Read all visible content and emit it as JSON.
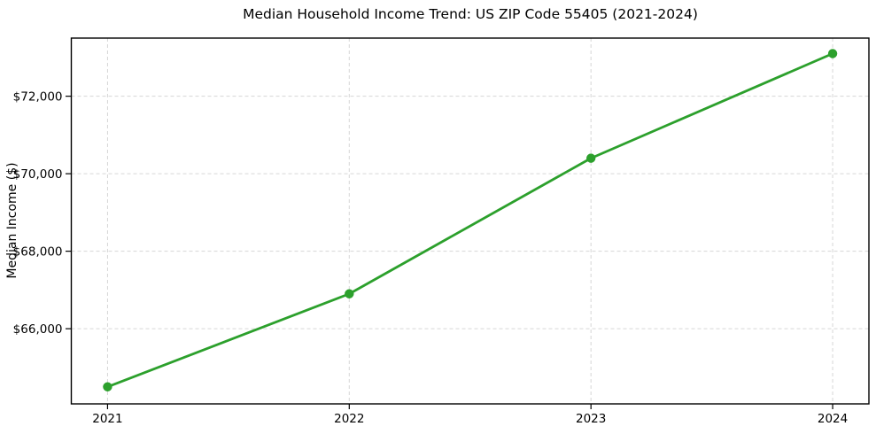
{
  "chart_data": {
    "type": "line",
    "title": "Median Household Income Trend: US ZIP Code 55405 (2021-2024)",
    "xlabel": "",
    "ylabel": "Median Income ($)",
    "x": [
      2021,
      2022,
      2023,
      2024
    ],
    "xtick_labels": [
      "2021",
      "2022",
      "2023",
      "2024"
    ],
    "yticks": [
      66000,
      68000,
      70000,
      72000
    ],
    "ytick_labels": [
      "$66,000",
      "$68,000",
      "$70,000",
      "$72,000"
    ],
    "series": [
      {
        "name": "Median Household Income",
        "values": [
          64500,
          66900,
          70400,
          73100
        ],
        "color": "#2ca02c"
      }
    ],
    "xlim": [
      2020.85,
      2024.15
    ],
    "ylim": [
      64060,
      73500
    ],
    "grid": true,
    "grid_style": "dashed",
    "grid_color": "#d6d6d6",
    "axis_color": "#000000",
    "background_color": "#ffffff",
    "legend": "none",
    "marker": "circle"
  }
}
